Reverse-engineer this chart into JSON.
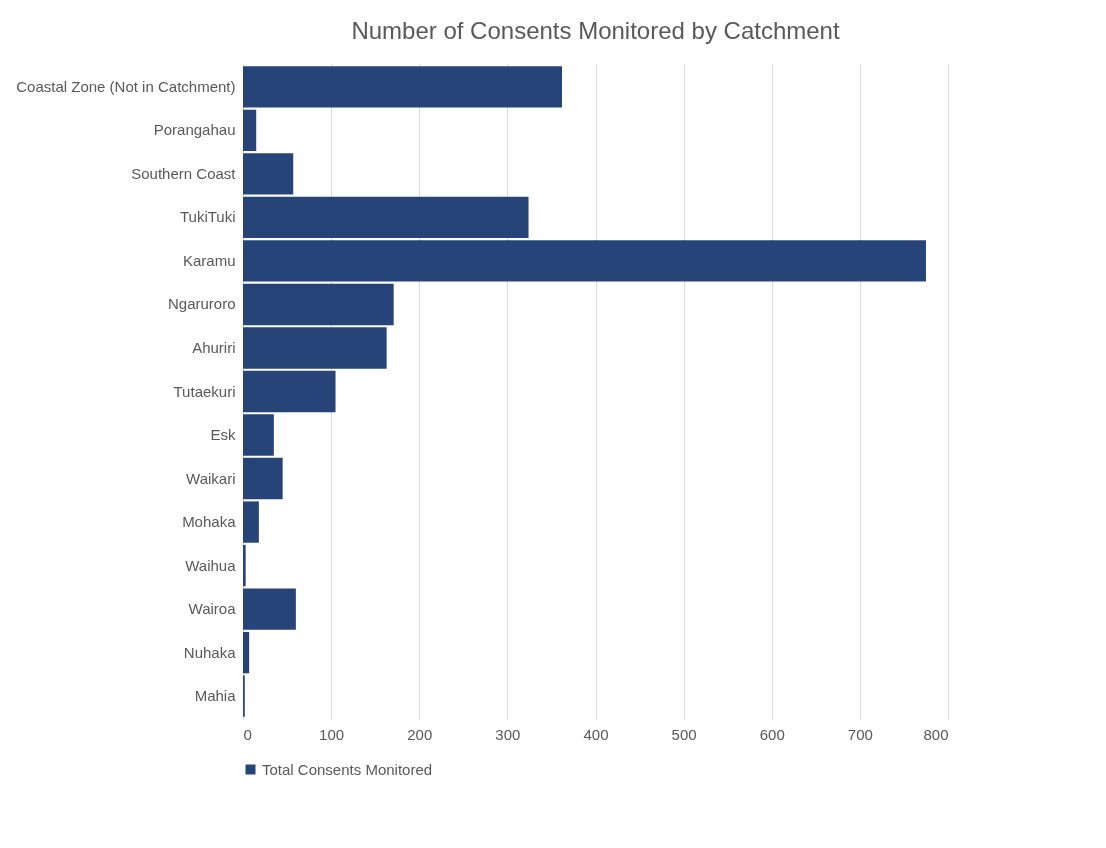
{
  "chart_data": {
    "type": "bar",
    "orientation": "horizontal",
    "title": "Number of Consents Monitored by Catchment",
    "categories": [
      "Coastal Zone (Not in Catchment)",
      "Porangahau",
      "Southern Coast",
      "TukiTuki",
      "Karamu",
      "Ngaruroro",
      "Ahuriri",
      "Tutaekuri",
      "Esk",
      "Waikari",
      "Mohaka",
      "Waihua",
      "Wairoa",
      "Nuhaka",
      "Mahia"
    ],
    "series": [
      {
        "name": "Total Consents Monitored",
        "color": "#264478",
        "values": [
          362,
          15,
          57,
          324,
          775,
          171,
          163,
          105,
          35,
          45,
          18,
          3,
          60,
          7,
          2
        ]
      }
    ],
    "xlim": [
      0,
      800
    ],
    "xticks": [
      0,
      100,
      200,
      300,
      400,
      500,
      600,
      700,
      800
    ],
    "grid": "x",
    "legend": "bottom"
  }
}
